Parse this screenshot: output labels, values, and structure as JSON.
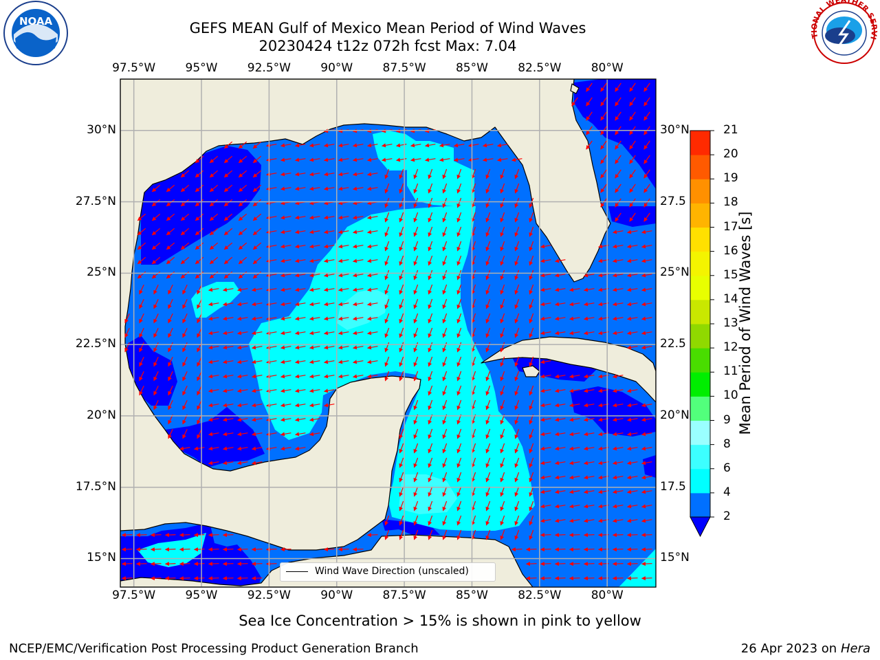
{
  "header": {
    "title_line1": "GEFS MEAN Gulf of Mexico Mean Period of Wind Waves",
    "title_line2": "20230424 t12z 072h fcst   Max: 7.04"
  },
  "logos": {
    "left": {
      "name": "noaa-logo",
      "text": "NOAA"
    },
    "right": {
      "name": "nws-logo",
      "text": "NATIONAL WEATHER SERVICE"
    }
  },
  "map": {
    "lon_ticks": [
      "97.5°W",
      "95°W",
      "92.5°W",
      "90°W",
      "87.5°W",
      "85°W",
      "82.5°W",
      "80°W"
    ],
    "lon_values": [
      -97.5,
      -95,
      -92.5,
      -90,
      -87.5,
      -85,
      -82.5,
      -80
    ],
    "lat_ticks_left": [
      "30°N",
      "27.5°N",
      "25°N",
      "22.5°N",
      "20°N",
      "17.5°N",
      "15°N"
    ],
    "lat_ticks_right": [
      "30°N",
      "27.5",
      "25°N",
      "22.5",
      "20°N",
      "17.5",
      "15°N"
    ],
    "lat_values": [
      30,
      27.5,
      25,
      22.5,
      20,
      17.5,
      15
    ],
    "extent": {
      "lon": [
        -98,
        -78.2
      ],
      "lat": [
        14,
        31.8
      ]
    },
    "grid": true,
    "colors": {
      "land": "#efeddc",
      "coast": "#000000",
      "arrow": "#ff0000",
      "grid": "#b0b0b0"
    },
    "legend_text": "Wind Wave Direction (unscaled)"
  },
  "colorbar": {
    "label": "Mean Period of Wind Waves [s]",
    "levels": [
      "2",
      "4",
      "6",
      "8",
      "9",
      "10",
      "11",
      "12",
      "13",
      "14",
      "15",
      "16",
      "17",
      "18",
      "19",
      "20",
      "21"
    ],
    "colors": [
      "#0070ff",
      "#00ffff",
      "#3cffff",
      "#9affff",
      "#52ff7c",
      "#00ee00",
      "#49dd00",
      "#90d900",
      "#c9e800",
      "#e8ff00",
      "#f4f400",
      "#ffe000",
      "#ffb400",
      "#ff9000",
      "#ff5a00",
      "#ff2a00"
    ],
    "under_color": "#0000ff"
  },
  "caption": "Sea Ice Concentration > 15% is shown in pink to yellow",
  "footer": {
    "left": "NCEP/EMC/Verification Post Processing Product Generation Branch",
    "right_date": "26 Apr 2023 on ",
    "right_host": "Hera"
  }
}
